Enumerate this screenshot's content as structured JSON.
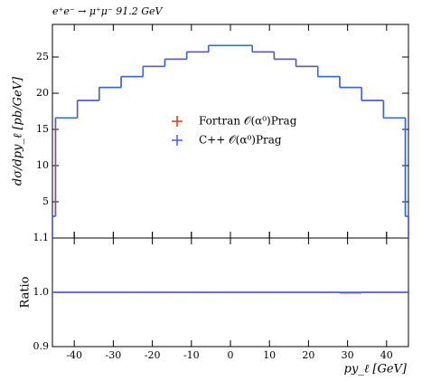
{
  "chart_data": {
    "type": "histogram",
    "title": "e⁺e⁻ → μ⁺μ⁻ 91.2 GeV",
    "xlabel": "py_ℓ [GeV]",
    "ylabel": "dσ/dpy_ℓ [pb/GeV]",
    "bins": [
      -45.6,
      -44.8,
      -39.2,
      -33.6,
      -28,
      -22.4,
      -16.8,
      -11.2,
      -5.6,
      5.6,
      11.2,
      16.8,
      22.4,
      28,
      33.6,
      39.2,
      44.8,
      45.6
    ],
    "xlim": [
      -45.6,
      45.6
    ],
    "xticks": [
      -40,
      -30,
      -20,
      -10,
      0,
      10,
      20,
      30,
      40
    ],
    "ylim": [
      0,
      29.5
    ],
    "yticks": [
      5,
      10,
      15,
      20,
      25
    ],
    "legend": "center",
    "series": [
      {
        "name": "Fortran 𝒪(α⁰)Prag",
        "color": "#ee3311",
        "values": [
          3,
          16.6,
          19,
          20.8,
          22.3,
          23.7,
          24.7,
          25.7,
          26.6,
          25.7,
          24.7,
          23.7,
          22.3,
          20.8,
          19,
          16.6,
          3
        ]
      },
      {
        "name": "C++ 𝒪(α⁰)Prag",
        "color": "#3366ee",
        "values": [
          3,
          16.6,
          19,
          20.8,
          22.3,
          23.7,
          24.7,
          25.7,
          26.6,
          25.7,
          24.7,
          23.7,
          22.3,
          20.8,
          19,
          16.6,
          3
        ]
      }
    ],
    "ratio": {
      "ylabel": "Ratio",
      "ylim": [
        0.9,
        1.1
      ],
      "yticks": [
        0.9,
        {
          "value": 1,
          "label": "1.0"
        },
        1.1
      ],
      "series": [
        {
          "color": "#ee3311",
          "values": [
            1,
            1,
            1,
            1,
            1,
            1,
            1,
            1,
            1,
            1,
            1,
            1,
            1,
            0.999,
            1,
            1,
            1
          ]
        },
        {
          "color": "#3366ee",
          "values": [
            1,
            1,
            1,
            1,
            1,
            1,
            1,
            1,
            1,
            1,
            1,
            1,
            1,
            1,
            1,
            1,
            1
          ]
        }
      ]
    }
  }
}
